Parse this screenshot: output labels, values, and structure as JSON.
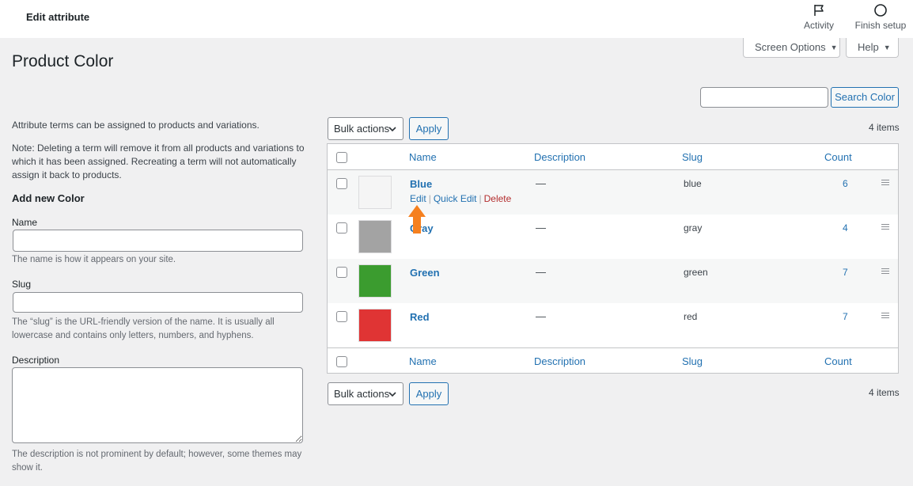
{
  "topbar": {
    "title": "Edit attribute",
    "activity_label": "Activity",
    "finish_label": "Finish setup"
  },
  "screen_options_label": "Screen Options",
  "help_label": "Help",
  "page_title": "Product Color",
  "search": {
    "placeholder": "",
    "button_label": "Search Color"
  },
  "left": {
    "intro": "Attribute terms can be assigned to products and variations.",
    "note": "Note: Deleting a term will remove it from all products and variations to which it has been assigned. Recreating a term will not automatically assign it back to products.",
    "heading": "Add new Color",
    "name_label": "Name",
    "name_desc": "The name is how it appears on your site.",
    "slug_label": "Slug",
    "slug_desc": "The “slug” is the URL-friendly version of the name. It is usually all lowercase and contains only letters, numbers, and hyphens.",
    "description_label": "Description",
    "description_desc": "The description is not prominent by default; however, some themes may show it."
  },
  "bulk": {
    "label": "Bulk actions",
    "apply_label": "Apply",
    "items_count": "4 items"
  },
  "table": {
    "columns": {
      "name": "Name",
      "description": "Description",
      "slug": "Slug",
      "count": "Count"
    },
    "row_actions": {
      "edit": "Edit",
      "quick_edit": "Quick Edit",
      "delete": "Delete"
    },
    "rows": [
      {
        "name": "Blue",
        "description": "—",
        "slug": "blue",
        "count": "6",
        "color": "#f5f5f5"
      },
      {
        "name": "Gray",
        "description": "—",
        "slug": "gray",
        "count": "4",
        "color": "#a3a3a3"
      },
      {
        "name": "Green",
        "description": "—",
        "slug": "green",
        "count": "7",
        "color": "#3b9c2f"
      },
      {
        "name": "Red",
        "description": "—",
        "slug": "red",
        "count": "7",
        "color": "#e03434"
      }
    ]
  },
  "annotation_color": "#f5801f"
}
